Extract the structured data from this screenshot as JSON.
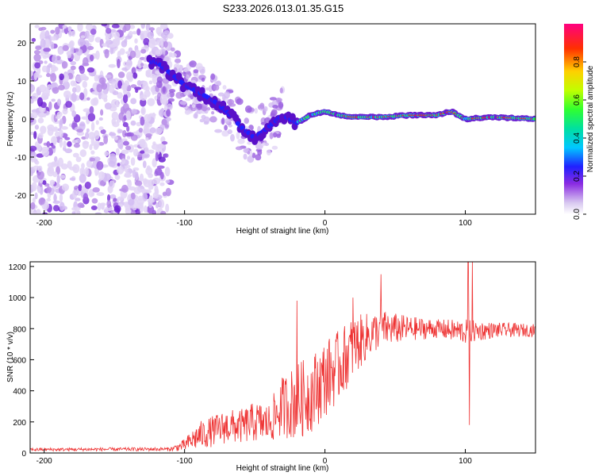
{
  "title": "S233.2026.013.01.35.G15",
  "chart_data": [
    {
      "type": "heatmap",
      "xlabel": "Height of straight line (km)",
      "ylabel": "Frequency (Hz)",
      "xlim": [
        -210,
        150
      ],
      "ylim": [
        -25,
        25
      ],
      "xticks": [
        -200,
        -100,
        0,
        100
      ],
      "yticks": [
        -20,
        -10,
        0,
        10,
        20
      ],
      "colorbar": {
        "label": "Normalized spectral amplitude",
        "range": [
          0,
          1
        ],
        "ticks": [
          "0.0",
          "0.2",
          "0.4",
          "0.6",
          "0.8"
        ]
      },
      "ridge": [
        {
          "x": -120,
          "f": 15
        },
        {
          "x": -110,
          "f": 12
        },
        {
          "x": -100,
          "f": 9
        },
        {
          "x": -90,
          "f": 7
        },
        {
          "x": -80,
          "f": 5
        },
        {
          "x": -70,
          "f": 2
        },
        {
          "x": -60,
          "f": -2
        },
        {
          "x": -50,
          "f": -5
        },
        {
          "x": -40,
          "f": -2
        },
        {
          "x": -30,
          "f": 1
        },
        {
          "x": -20,
          "f": -1
        },
        {
          "x": -10,
          "f": 1
        },
        {
          "x": 0,
          "f": 2
        },
        {
          "x": 10,
          "f": 1
        },
        {
          "x": 20,
          "f": 0.5
        },
        {
          "x": 40,
          "f": 0.5
        },
        {
          "x": 60,
          "f": 1
        },
        {
          "x": 80,
          "f": 1
        },
        {
          "x": 90,
          "f": 2
        },
        {
          "x": 100,
          "f": 0
        },
        {
          "x": 120,
          "f": 0.5
        },
        {
          "x": 150,
          "f": 0
        }
      ]
    },
    {
      "type": "line",
      "xlabel": "Height of straight line (km)",
      "ylabel": "SNR (10 * v/v)",
      "xlim": [
        -210,
        150
      ],
      "ylim": [
        0,
        1230
      ],
      "xticks": [
        -200,
        -100,
        0,
        100
      ],
      "yticks": [
        0,
        200,
        400,
        600,
        800,
        1000,
        1200
      ],
      "color": "#ee3333",
      "envelope": [
        {
          "x": -210,
          "mean": 22,
          "spread": 10
        },
        {
          "x": -110,
          "mean": 25,
          "spread": 12
        },
        {
          "x": -100,
          "mean": 50,
          "spread": 40
        },
        {
          "x": -90,
          "mean": 110,
          "spread": 90
        },
        {
          "x": -80,
          "mean": 140,
          "spread": 100
        },
        {
          "x": -70,
          "mean": 170,
          "spread": 110
        },
        {
          "x": -60,
          "mean": 170,
          "spread": 110
        },
        {
          "x": -50,
          "mean": 200,
          "spread": 130
        },
        {
          "x": -40,
          "mean": 190,
          "spread": 130
        },
        {
          "x": -30,
          "mean": 300,
          "spread": 200
        },
        {
          "x": -20,
          "mean": 330,
          "spread": 250
        },
        {
          "x": -10,
          "mean": 380,
          "spread": 250
        },
        {
          "x": 0,
          "mean": 480,
          "spread": 250
        },
        {
          "x": 10,
          "mean": 560,
          "spread": 230
        },
        {
          "x": 20,
          "mean": 680,
          "spread": 200
        },
        {
          "x": 30,
          "mean": 750,
          "spread": 150
        },
        {
          "x": 40,
          "mean": 800,
          "spread": 120
        },
        {
          "x": 60,
          "mean": 800,
          "spread": 80
        },
        {
          "x": 80,
          "mean": 800,
          "spread": 60
        },
        {
          "x": 100,
          "mean": 780,
          "spread": 80
        },
        {
          "x": 120,
          "mean": 790,
          "spread": 50
        },
        {
          "x": 150,
          "mean": 790,
          "spread": 40
        }
      ],
      "spikes": [
        {
          "x": -20,
          "y": 980
        },
        {
          "x": 20,
          "y": 1000
        },
        {
          "x": 40,
          "y": 1150
        },
        {
          "x": 102,
          "y": 1230
        },
        {
          "x": 103,
          "y": 180
        },
        {
          "x": 105,
          "y": 1230
        }
      ]
    }
  ]
}
